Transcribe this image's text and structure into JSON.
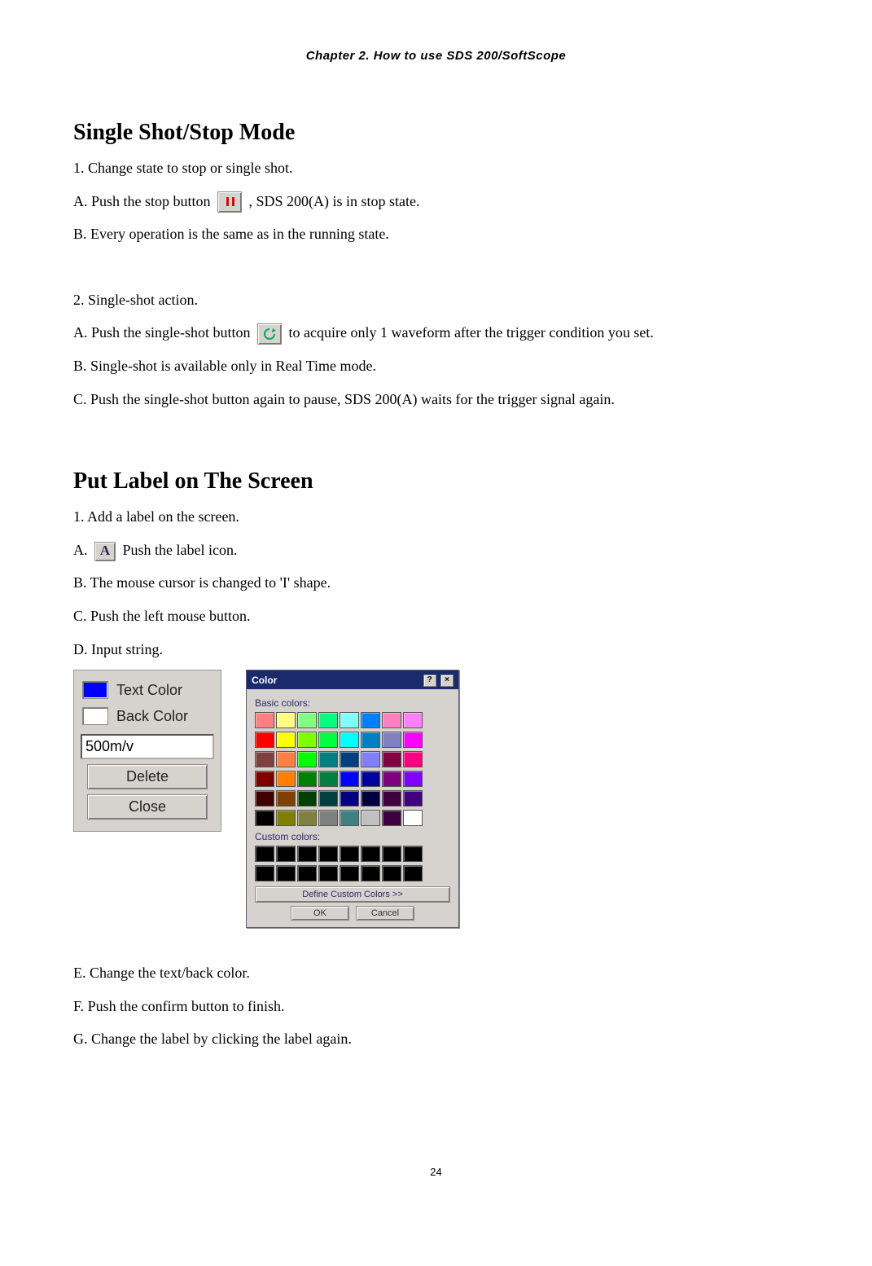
{
  "chapter_header": "Chapter 2. How to use SDS 200/SoftScope",
  "section1": {
    "title": "Single Shot/Stop Mode",
    "p1": "1. Change state to stop or single shot.",
    "pA_before": "A. Push the stop button ",
    "pA_after": ", SDS 200(A) is in stop state.",
    "pB": "B. Every operation is the same as in the running state.",
    "p2": "2. Single-shot action.",
    "p2A_before": "A. Push the single-shot button ",
    "p2A_after": " to acquire only 1 waveform after the trigger condition you set.",
    "p2B": "B. Single-shot is available only in Real Time mode.",
    "p2C": "C. Push the single-shot button again to pause, SDS 200(A) waits for the trigger signal again."
  },
  "section2": {
    "title": "Put Label on The Screen",
    "p1": "1. Add a label on the screen.",
    "pA_before": "A. ",
    "pA_after": " Push the label icon.",
    "pB": "B. The mouse cursor is changed to 'I' shape.",
    "pC": "C. Push the left mouse button.",
    "pD": "D. Input string.",
    "pE": "E. Change the text/back color.",
    "pF": "F. Push the confirm button to finish.",
    "pG": "G. Change the label by clicking the label again."
  },
  "label_panel": {
    "text_color_label": "Text Color",
    "text_color_swatch": "#0000ff",
    "back_color_label": "Back Color",
    "back_color_swatch": "#ffffff",
    "input_value": "500m/v",
    "delete_btn": "Delete",
    "close_btn": "Close"
  },
  "color_dialog": {
    "title": "Color",
    "basic_label": "Basic colors:",
    "custom_label": "Custom colors:",
    "define_btn": "Define Custom Colors >>",
    "ok_btn": "OK",
    "cancel_btn": "Cancel",
    "basic_colors": [
      "#ff8080",
      "#ffff80",
      "#80ff80",
      "#00ff80",
      "#80ffff",
      "#0080ff",
      "#ff80c0",
      "#ff80ff",
      "#ff0000",
      "#ffff00",
      "#80ff00",
      "#00ff40",
      "#00ffff",
      "#0080c0",
      "#8080c0",
      "#ff00ff",
      "#804040",
      "#ff8040",
      "#00ff00",
      "#008080",
      "#004080",
      "#8080ff",
      "#800040",
      "#ff0080",
      "#800000",
      "#ff8000",
      "#008000",
      "#008040",
      "#0000ff",
      "#0000a0",
      "#800080",
      "#8000ff",
      "#400000",
      "#804000",
      "#004000",
      "#004040",
      "#000080",
      "#000040",
      "#400040",
      "#400080",
      "#000000",
      "#808000",
      "#808040",
      "#808080",
      "#408080",
      "#c0c0c0",
      "#400040",
      "#ffffff"
    ],
    "custom_colors": [
      "#000000",
      "#000000",
      "#000000",
      "#000000",
      "#000000",
      "#000000",
      "#000000",
      "#000000",
      "#000000",
      "#000000",
      "#000000",
      "#000000",
      "#000000",
      "#000000",
      "#000000",
      "#000000"
    ]
  },
  "page_number": "24"
}
